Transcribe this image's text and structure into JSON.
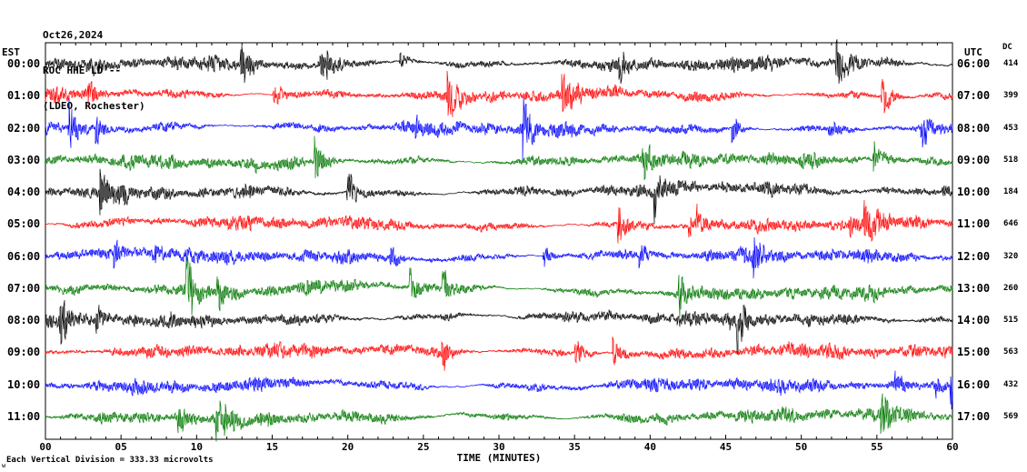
{
  "header": {
    "date": "Oct26,2024",
    "station": "ROC HHE LD --",
    "location": "(LDEO, Rochester)"
  },
  "axes": {
    "left_label": "EST",
    "right_label": "UTC",
    "dc_label": "DC"
  },
  "footer": {
    "scale_note": "Each Vertical Division =  333.33 microvolts",
    "corner_mark": "w"
  },
  "chart_data": {
    "type": "line",
    "subtype": "helicorder-seismogram",
    "xlabel": "TIME (MINUTES)",
    "x_range_minutes": [
      0,
      60
    ],
    "x_ticks": [
      "00",
      "05",
      "10",
      "15",
      "20",
      "25",
      "30",
      "35",
      "40",
      "45",
      "50",
      "55",
      "60"
    ],
    "grid": "tick marks only, solid black plot border",
    "note": "Twelve one-hour rows of continuous high-frequency seismic noise with intermittent burst spikes; individual samples not resolvable from image, traces synthesized to match amplitude envelope.",
    "trace_colors": {
      "black": "#000000",
      "red": "#ff0000",
      "blue": "#0000ff",
      "green": "#007700"
    },
    "rows": [
      {
        "est": "00:00",
        "utc": "06:00",
        "dc": "414",
        "color": "black"
      },
      {
        "est": "01:00",
        "utc": "07:00",
        "dc": "399",
        "color": "red"
      },
      {
        "est": "02:00",
        "utc": "08:00",
        "dc": "453",
        "color": "blue"
      },
      {
        "est": "03:00",
        "utc": "09:00",
        "dc": "518",
        "color": "green"
      },
      {
        "est": "04:00",
        "utc": "10:00",
        "dc": "184",
        "color": "black"
      },
      {
        "est": "05:00",
        "utc": "11:00",
        "dc": "646",
        "color": "red"
      },
      {
        "est": "06:00",
        "utc": "12:00",
        "dc": "320",
        "color": "blue"
      },
      {
        "est": "07:00",
        "utc": "13:00",
        "dc": "260",
        "color": "green"
      },
      {
        "est": "08:00",
        "utc": "14:00",
        "dc": "515",
        "color": "black"
      },
      {
        "est": "09:00",
        "utc": "15:00",
        "dc": "563",
        "color": "red"
      },
      {
        "est": "10:00",
        "utc": "16:00",
        "dc": "432",
        "color": "blue"
      },
      {
        "est": "11:00",
        "utc": "17:00",
        "dc": "569",
        "color": "green"
      }
    ]
  }
}
